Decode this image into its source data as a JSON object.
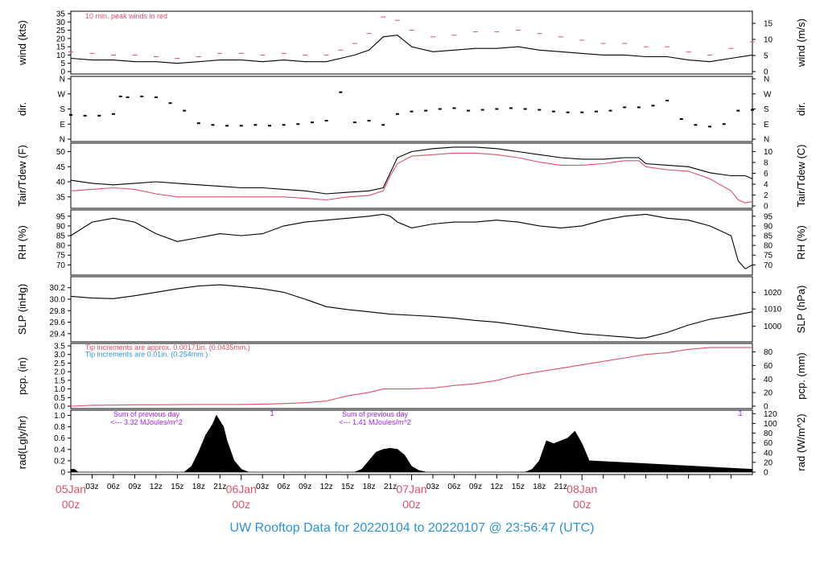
{
  "colors": {
    "red": "#e0506a",
    "blue": "#2a94d6",
    "purple": "#a020f0",
    "black": "#000000"
  },
  "footer": {
    "title": "UW Rooftop Data for 20220104  to  20220107 @ 23:56:47  (UTC)"
  },
  "chart_data": {
    "type": "line",
    "time_axis": {
      "range_hours": [
        0,
        96
      ],
      "hour_ticks": [
        "03z",
        "06z",
        "09z",
        "12z",
        "15z",
        "18z",
        "21z",
        "03z",
        "06z",
        "09z",
        "12z",
        "15z",
        "18z",
        "21z",
        "03z",
        "06z",
        "09z",
        "12z",
        "15z",
        "18z",
        "21z"
      ],
      "date_labels": [
        {
          "date": "05Jan",
          "time": "00z"
        },
        {
          "date": "06Jan",
          "time": "00z"
        },
        {
          "date": "07Jan",
          "time": "00z"
        },
        {
          "date": "08Jan",
          "time": "00z"
        }
      ]
    },
    "panels": [
      {
        "id": "wind",
        "ylabel_left": "wind (kts)",
        "ylabel_right": "wind (m/s)",
        "ylim": [
          0,
          35
        ],
        "left_ticks": [
          "0",
          "5",
          "10",
          "15",
          "20",
          "25",
          "30",
          "35"
        ],
        "right_ticks": [
          "0",
          "5",
          "10",
          "15"
        ],
        "annotation": "10 min. peak winds in red",
        "series": [
          {
            "name": "wind speed",
            "x": [
              0,
              3,
              6,
              9,
              12,
              15,
              18,
              21,
              24,
              27,
              30,
              33,
              36,
              38,
              40,
              42,
              44,
              46,
              48,
              51,
              54,
              57,
              60,
              63,
              66,
              69,
              72,
              75,
              78,
              81,
              84,
              87,
              90,
              93,
              96
            ],
            "y": [
              8,
              7,
              7,
              6,
              6,
              5,
              6,
              7,
              7,
              6,
              7,
              6,
              6,
              8,
              10,
              13,
              21,
              22,
              15,
              12,
              13,
              14,
              14,
              15,
              13,
              12,
              11,
              10,
              10,
              9,
              9,
              7,
              6,
              8,
              10
            ]
          },
          {
            "name": "10 min. peak winds",
            "x": [
              0,
              3,
              6,
              9,
              12,
              15,
              18,
              21,
              24,
              27,
              30,
              33,
              36,
              38,
              40,
              42,
              44,
              46,
              48,
              51,
              54,
              57,
              60,
              63,
              66,
              69,
              72,
              75,
              78,
              81,
              84,
              87,
              90,
              93,
              96
            ],
            "y": [
              12,
              11,
              10,
              10,
              9,
              8,
              9,
              11,
              11,
              10,
              11,
              10,
              10,
              13,
              17,
              23,
              33,
              31,
              25,
              21,
              22,
              24,
              24,
              25,
              23,
              21,
              19,
              17,
              17,
              15,
              15,
              12,
              10,
              14,
              18
            ]
          }
        ]
      },
      {
        "id": "dir",
        "ylabel_left": "dir.",
        "ylabel_right": "dir.",
        "left_ticks": [
          "N",
          "E",
          "S",
          "W",
          "N"
        ],
        "right_ticks": [
          "N",
          "E",
          "S",
          "W",
          "N"
        ],
        "series": [
          {
            "name": "direction",
            "x": [
              0,
              2,
              4,
              6,
              7,
              8,
              10,
              12,
              14,
              16,
              18,
              20,
              22,
              24,
              26,
              28,
              30,
              32,
              34,
              36,
              38,
              40,
              42,
              44,
              46,
              48,
              50,
              52,
              54,
              56,
              58,
              60,
              62,
              64,
              66,
              68,
              70,
              72,
              74,
              76,
              78,
              80,
              82,
              84,
              86,
              88,
              90,
              92,
              94,
              96
            ],
            "y": [
              145,
              140,
              140,
              150,
              255,
              250,
              255,
              250,
              215,
              170,
              95,
              85,
              80,
              80,
              85,
              80,
              85,
              90,
              100,
              110,
              280,
              100,
              110,
              85,
              150,
              165,
              170,
              180,
              185,
              170,
              175,
              180,
              185,
              180,
              175,
              165,
              160,
              160,
              165,
              170,
              190,
              190,
              200,
              230,
              120,
              85,
              75,
              90,
              170,
              175
            ]
          }
        ]
      },
      {
        "id": "temp",
        "ylabel_left": "Tair/Tdew (F)",
        "ylabel_right": "Tair/Tdew (C)",
        "left_ticks": [
          "35",
          "40",
          "45",
          "50"
        ],
        "right_ticks": [
          "0",
          "2",
          "4",
          "6",
          "8",
          "10"
        ],
        "series": [
          {
            "name": "Tair",
            "x": [
              0,
              3,
              6,
              9,
              12,
              15,
              18,
              21,
              24,
              27,
              30,
              33,
              36,
              39,
              42,
              44,
              45,
              46,
              48,
              51,
              54,
              57,
              60,
              63,
              66,
              69,
              72,
              75,
              78,
              80,
              81,
              84,
              87,
              90,
              93,
              95,
              96
            ],
            "y": [
              40.5,
              39.5,
              39,
              39.5,
              40,
              39.5,
              39,
              38.5,
              38,
              38,
              37.5,
              37,
              36,
              36.5,
              37,
              38,
              43,
              48,
              50,
              51,
              51.5,
              51.5,
              51,
              50,
              49,
              48,
              47.5,
              47.5,
              48,
              48,
              46,
              45.5,
              45,
              43,
              42,
              42,
              41
            ]
          },
          {
            "name": "Tdew",
            "x": [
              0,
              3,
              6,
              9,
              12,
              15,
              18,
              21,
              24,
              27,
              30,
              33,
              36,
              39,
              42,
              44,
              45,
              46,
              48,
              51,
              54,
              57,
              60,
              63,
              66,
              69,
              72,
              75,
              78,
              80,
              81,
              84,
              87,
              90,
              93,
              94,
              95,
              96
            ],
            "y": [
              37,
              37.5,
              38,
              37.5,
              36,
              35,
              35,
              35,
              35,
              35,
              35,
              34.5,
              34,
              35,
              35.5,
              37,
              42,
              46,
              48.5,
              49,
              49.5,
              49.5,
              49,
              48,
              46.5,
              45.5,
              45.5,
              46,
              47,
              47,
              45,
              44,
              43.5,
              41,
              37,
              34,
              33,
              33.5
            ]
          }
        ]
      },
      {
        "id": "rh",
        "ylabel_left": "RH (%)",
        "ylabel_right": "RH (%)",
        "left_ticks": [
          "70",
          "75",
          "80",
          "85",
          "90",
          "95"
        ],
        "right_ticks": [
          "70",
          "75",
          "80",
          "85",
          "90",
          "95"
        ],
        "series": [
          {
            "name": "RH",
            "x": [
              0,
              3,
              6,
              9,
              12,
              15,
              18,
              21,
              24,
              27,
              30,
              33,
              36,
              39,
              42,
              44,
              45,
              46,
              48,
              51,
              54,
              57,
              60,
              63,
              66,
              69,
              72,
              75,
              78,
              81,
              84,
              87,
              90,
              93,
              94,
              95,
              96
            ],
            "y": [
              85,
              92,
              94,
              92,
              86,
              82,
              84,
              86,
              85,
              86,
              90,
              92,
              93,
              94,
              95,
              96,
              95,
              92,
              89,
              91,
              92,
              92,
              93,
              92,
              90,
              89,
              90,
              93,
              95,
              96,
              94,
              93,
              90,
              85,
              72,
              68,
              70
            ]
          }
        ]
      },
      {
        "id": "slp",
        "ylabel_left": "SLP (inHg)",
        "ylabel_right": "SLP (hPa)",
        "left_ticks": [
          "29.4",
          "29.6",
          "29.8",
          "30.0",
          "30.2"
        ],
        "right_ticks": [
          "1000",
          "1010",
          "1020"
        ],
        "series": [
          {
            "name": "SLP",
            "x": [
              0,
              3,
              6,
              9,
              12,
              15,
              18,
              21,
              24,
              27,
              30,
              33,
              36,
              39,
              42,
              45,
              48,
              51,
              54,
              57,
              60,
              63,
              66,
              69,
              72,
              75,
              78,
              80,
              81,
              84,
              87,
              90,
              93,
              96
            ],
            "y": [
              30.05,
              30.02,
              30.01,
              30.06,
              30.12,
              30.18,
              30.23,
              30.25,
              30.22,
              30.18,
              30.12,
              30.0,
              29.87,
              29.82,
              29.78,
              29.74,
              29.72,
              29.7,
              29.67,
              29.63,
              29.6,
              29.55,
              29.5,
              29.45,
              29.4,
              29.37,
              29.34,
              29.32,
              29.33,
              29.42,
              29.55,
              29.65,
              29.71,
              29.78
            ]
          }
        ]
      },
      {
        "id": "pcp",
        "ylabel_left": "pcp. (in)",
        "ylabel_right": "pcp. (mm)",
        "left_ticks": [
          "0.0",
          "0.5",
          "1.0",
          "1.5",
          "2.0",
          "2.5",
          "3.0",
          "3.5"
        ],
        "right_ticks": [
          "0",
          "20",
          "40",
          "60",
          "80"
        ],
        "notes": [
          {
            "text": "Tip increments are approx. 0.00171in. (0.0435mm.)",
            "color": "red"
          },
          {
            "text": "Tip increments are 0.01in. (0.254mm.)",
            "color": "blue"
          }
        ],
        "series": [
          {
            "name": "precipitation",
            "x": [
              0,
              3,
              6,
              9,
              12,
              15,
              18,
              21,
              24,
              27,
              30,
              33,
              36,
              39,
              42,
              44,
              45,
              46,
              48,
              51,
              54,
              57,
              60,
              63,
              66,
              69,
              72,
              75,
              78,
              81,
              84,
              87,
              90,
              93,
              96
            ],
            "y": [
              0,
              0.05,
              0.06,
              0.08,
              0.08,
              0.09,
              0.1,
              0.1,
              0.1,
              0.12,
              0.15,
              0.2,
              0.3,
              0.6,
              0.8,
              1.0,
              1.0,
              1.0,
              1.0,
              1.05,
              1.2,
              1.3,
              1.5,
              1.8,
              2.0,
              2.2,
              2.4,
              2.6,
              2.8,
              3.0,
              3.1,
              3.3,
              3.4,
              3.4,
              3.4
            ]
          }
        ]
      },
      {
        "id": "rad",
        "ylabel_left": "rad(Lgly/hr)",
        "ylabel_right": "rad (W/m^2)",
        "left_ticks": [
          "0",
          "0.2",
          "0.4",
          "0.6",
          "0.8",
          "1.0"
        ],
        "right_ticks": [
          "0",
          "20",
          "40",
          "60",
          "80",
          "100",
          "120"
        ],
        "annotations": [
          {
            "line1": "Sum of previous day",
            "line2": "<--- 3.32 MJoules/m^2"
          },
          {
            "line1": "Sum of previous day",
            "line2": "<--- 1.41 MJoules/m^2"
          }
        ],
        "peak_marks": [
          "1",
          "1"
        ],
        "series": [
          {
            "name": "radiation",
            "x": [
              0,
              0.5,
              1,
              16,
              17,
              18,
              19,
              20,
              20.5,
              21,
              21.5,
              22,
              23,
              24,
              25,
              40,
              41,
              42,
              43,
              44,
              45,
              46,
              47,
              48,
              49,
              50,
              64,
              65,
              66,
              67,
              68,
              69,
              70,
              71,
              72,
              73,
              96
            ],
            "y": [
              0.05,
              0.05,
              0,
              0,
              0.1,
              0.35,
              0.65,
              0.85,
              1.0,
              0.9,
              0.8,
              0.55,
              0.2,
              0.05,
              0,
              0,
              0.05,
              0.2,
              0.35,
              0.4,
              0.42,
              0.4,
              0.3,
              0.1,
              0.03,
              0,
              0,
              0.05,
              0.2,
              0.55,
              0.5,
              0.55,
              0.6,
              0.72,
              0.5,
              0.2,
              0.05
            ]
          }
        ]
      }
    ]
  }
}
